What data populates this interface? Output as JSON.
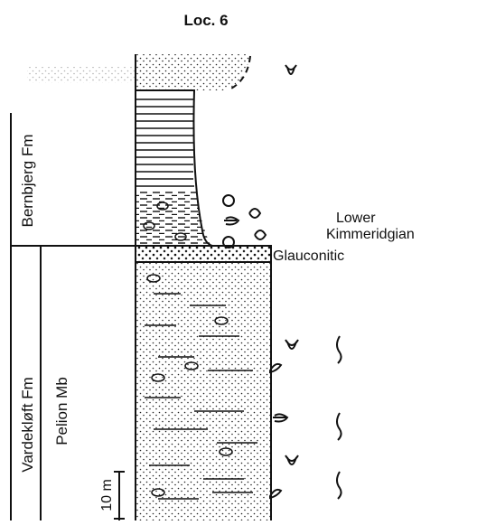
{
  "header": {
    "title": "Loc. 6"
  },
  "formations": [
    {
      "name": "Bernbjerg Fm"
    },
    {
      "name": "Vardekløft Fm"
    }
  ],
  "members": [
    {
      "name": "Pelion Mb"
    }
  ],
  "annotations": [
    {
      "lines": [
        "Lower",
        "Kimmeridgian"
      ]
    },
    {
      "lines": [
        "Glauconitic"
      ]
    }
  ],
  "scale_bar": {
    "label": "10 m"
  }
}
